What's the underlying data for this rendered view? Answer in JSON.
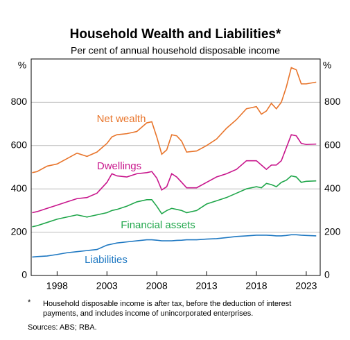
{
  "chart_data": {
    "type": "line",
    "title": "Household Wealth and Liabilities*",
    "subtitle": "Per cent of annual household disposable income",
    "unit": "%",
    "x": [
      1995.5,
      1996,
      1997,
      1998,
      1999,
      2000,
      2001,
      2002,
      2003,
      2003.5,
      2004,
      2005,
      2006,
      2007,
      2007.5,
      2008,
      2008.5,
      2009,
      2009.5,
      2010,
      2010.5,
      2011,
      2012,
      2013,
      2014,
      2015,
      2016,
      2017,
      2018,
      2018.5,
      2019,
      2019.5,
      2020,
      2020.5,
      2021,
      2021.5,
      2022,
      2022.5,
      2023,
      2024
    ],
    "series": [
      {
        "name": "Net wealth",
        "color": "#e8742a",
        "values": [
          475,
          480,
          505,
          515,
          540,
          565,
          550,
          570,
          610,
          640,
          650,
          655,
          665,
          705,
          710,
          640,
          560,
          580,
          650,
          645,
          620,
          570,
          575,
          600,
          630,
          680,
          720,
          770,
          780,
          745,
          760,
          795,
          770,
          800,
          870,
          960,
          950,
          885,
          885,
          893
        ]
      },
      {
        "name": "Dwellings",
        "color": "#c8168c",
        "values": [
          290,
          295,
          310,
          325,
          340,
          355,
          360,
          380,
          430,
          470,
          460,
          455,
          470,
          475,
          480,
          450,
          395,
          410,
          470,
          455,
          430,
          405,
          405,
          430,
          455,
          470,
          490,
          530,
          530,
          510,
          490,
          510,
          510,
          530,
          590,
          650,
          645,
          610,
          605,
          607
        ]
      },
      {
        "name": "Financial assets",
        "color": "#1fa64a",
        "values": [
          225,
          230,
          245,
          260,
          270,
          280,
          270,
          280,
          290,
          300,
          305,
          320,
          340,
          350,
          350,
          320,
          285,
          300,
          310,
          305,
          300,
          290,
          300,
          330,
          345,
          360,
          380,
          400,
          410,
          405,
          425,
          420,
          410,
          430,
          440,
          460,
          455,
          430,
          435,
          437
        ]
      },
      {
        "name": "Liabilities",
        "color": "#1e78c2",
        "values": [
          85,
          87,
          90,
          97,
          105,
          110,
          115,
          120,
          140,
          145,
          150,
          155,
          160,
          165,
          165,
          163,
          160,
          160,
          160,
          162,
          163,
          165,
          165,
          168,
          170,
          175,
          180,
          183,
          186,
          186,
          186,
          185,
          183,
          183,
          185,
          188,
          188,
          186,
          185,
          183
        ]
      }
    ],
    "xlim": [
      1995.4,
      2024.4
    ],
    "xticks": [
      1998,
      2003,
      2008,
      2013,
      2018,
      2023
    ],
    "ylim": [
      0,
      1000
    ],
    "yticks": [
      0,
      200,
      400,
      600,
      800
    ],
    "grid": true,
    "footnote_marker": "*",
    "footnote": "Household disposable income is after tax, before the deduction of interest payments, and includes income of unincorporated enterprises.",
    "sources": "Sources: ABS; RBA."
  }
}
